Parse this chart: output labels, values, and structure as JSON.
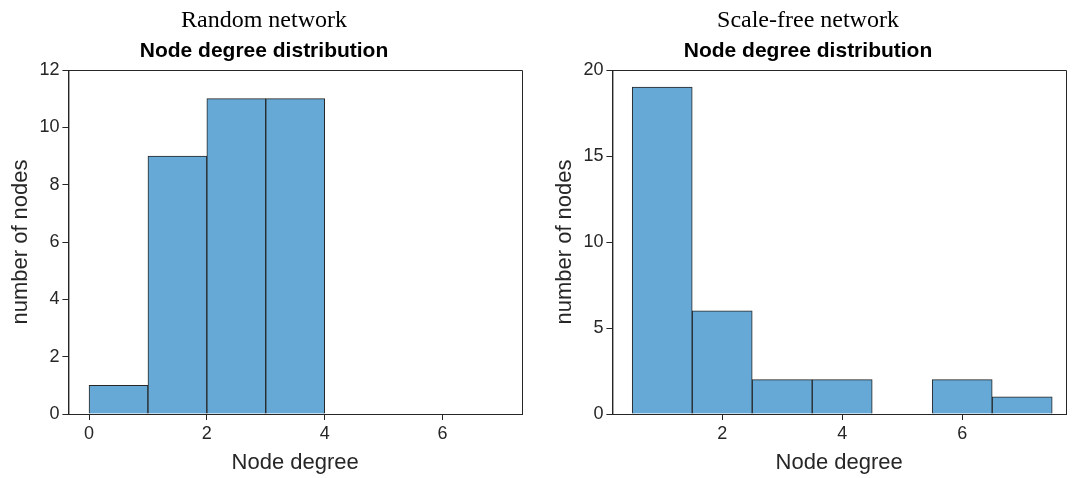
{
  "chart_data": [
    {
      "type": "histogram",
      "title": "Random network",
      "subtitle": "Node degree distribution",
      "xlabel": "Node degree",
      "ylabel": "number of nodes",
      "bins": [
        0,
        1,
        2,
        3,
        4
      ],
      "values": [
        1,
        9,
        11,
        11
      ],
      "color": "#66a9d6",
      "xlim": [
        -0.35,
        7.35
      ],
      "xticks": [
        0,
        2,
        4,
        6
      ],
      "ylim": [
        0,
        12
      ],
      "yticks": [
        0,
        2,
        4,
        6,
        8,
        10,
        12
      ]
    },
    {
      "type": "histogram",
      "title": "Scale-free network",
      "subtitle": "Node degree distribution",
      "xlabel": "Node degree",
      "ylabel": "number of nodes",
      "bins": [
        0.5,
        1.5,
        2.5,
        3.5,
        4.5,
        5.5,
        6.5,
        7.5
      ],
      "values": [
        19,
        6,
        2,
        2,
        0,
        2,
        1
      ],
      "color": "#66a9d6",
      "xlim": [
        0.17,
        7.73
      ],
      "xticks": [
        2,
        4,
        6
      ],
      "ylim": [
        0,
        20
      ],
      "yticks": [
        0,
        5,
        10,
        15,
        20
      ]
    }
  ]
}
